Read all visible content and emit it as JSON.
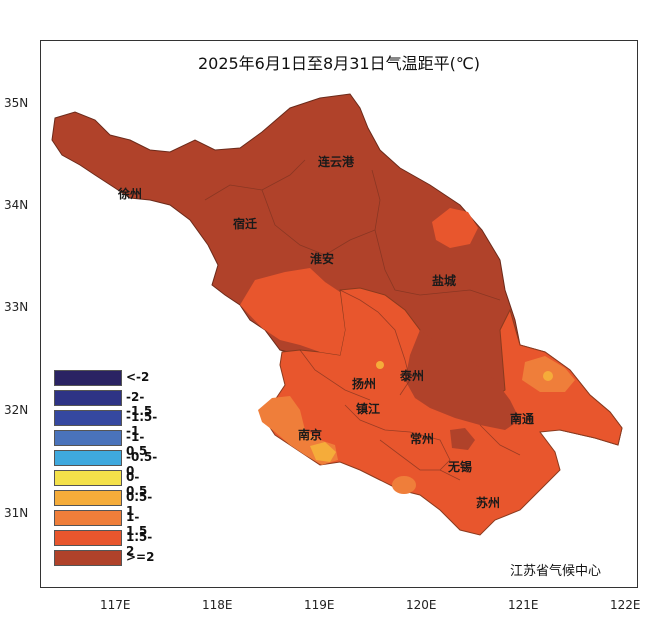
{
  "title": "2025年6月1日至8月31日气温距平(℃)",
  "source": "江苏省气候中心",
  "lat_ticks": [
    "35N",
    "34N",
    "33N",
    "32N",
    "31N"
  ],
  "lon_ticks": [
    "117E",
    "118E",
    "119E",
    "120E",
    "121E",
    "122E"
  ],
  "legend": [
    {
      "label": "<-2",
      "color": "#2a2363"
    },
    {
      "label": "-2--1.5",
      "color": "#2e3385"
    },
    {
      "label": "-1.5--1",
      "color": "#3548a0"
    },
    {
      "label": "-1-0.5",
      "color": "#4a73bb"
    },
    {
      "label": "-0.5-0",
      "color": "#3fa9de"
    },
    {
      "label": "0-0.5",
      "color": "#f4e14a"
    },
    {
      "label": "0.5-1",
      "color": "#f5ac3a"
    },
    {
      "label": "1-1.5",
      "color": "#ef7e3a"
    },
    {
      "label": "1.5-2",
      "color": "#e8562d"
    },
    {
      "label": ">=2",
      "color": "#b0422a"
    }
  ],
  "cities": [
    "连云港",
    "徐州",
    "宿迁",
    "淮安",
    "盐城",
    "扬州",
    "泰州",
    "镇江",
    "南京",
    "常州",
    "南通",
    "无锡",
    "苏州"
  ]
}
